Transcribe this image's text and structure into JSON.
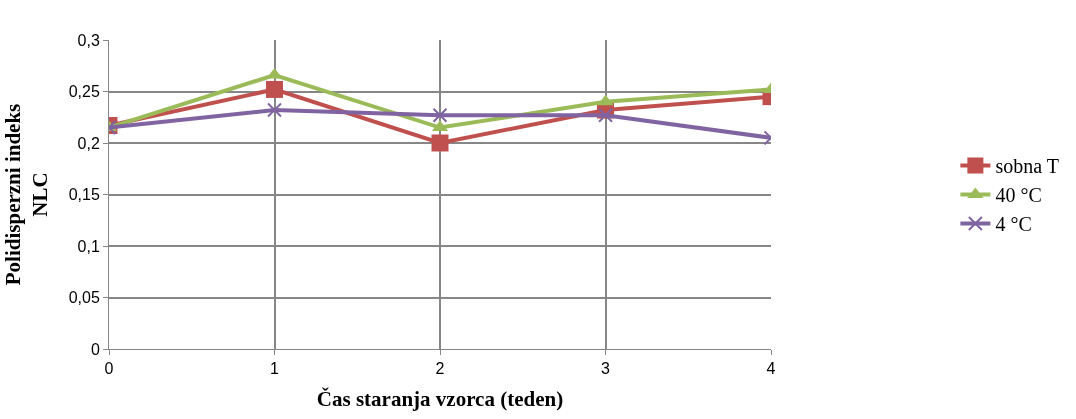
{
  "chart_data": {
    "type": "line",
    "xlabel": "Čas staranja vzorca (teden)",
    "ylabel": "Polidisperzni indeks\nNLC",
    "x": [
      0,
      1,
      2,
      3,
      4
    ],
    "xlim": [
      0,
      4
    ],
    "xticks": [
      0,
      1,
      2,
      3,
      4
    ],
    "ylim": [
      0,
      0.3
    ],
    "yticks": [
      {
        "value": 0,
        "label": "0"
      },
      {
        "value": 0.05,
        "label": "0,05"
      },
      {
        "value": 0.1,
        "label": "0,1"
      },
      {
        "value": 0.15,
        "label": "0,15"
      },
      {
        "value": 0.2,
        "label": "0,2"
      },
      {
        "value": 0.25,
        "label": "0,25"
      },
      {
        "value": 0.3,
        "label": "0,3"
      }
    ],
    "grid": true,
    "legend": "right",
    "line_style": "solid",
    "series": [
      {
        "name": "sobna T",
        "color": "#c0504d",
        "marker": "square",
        "values": [
          0.217,
          0.252,
          0.2,
          0.232,
          0.245
        ]
      },
      {
        "name": "40 °C",
        "color": "#9bbb59",
        "marker": "triangle",
        "values": [
          0.215,
          0.266,
          0.215,
          0.24,
          0.252
        ]
      },
      {
        "name": "4 °C",
        "color": "#8064a2",
        "marker": "cross",
        "values": [
          0.215,
          0.232,
          0.227,
          0.227,
          0.205
        ]
      }
    ]
  }
}
